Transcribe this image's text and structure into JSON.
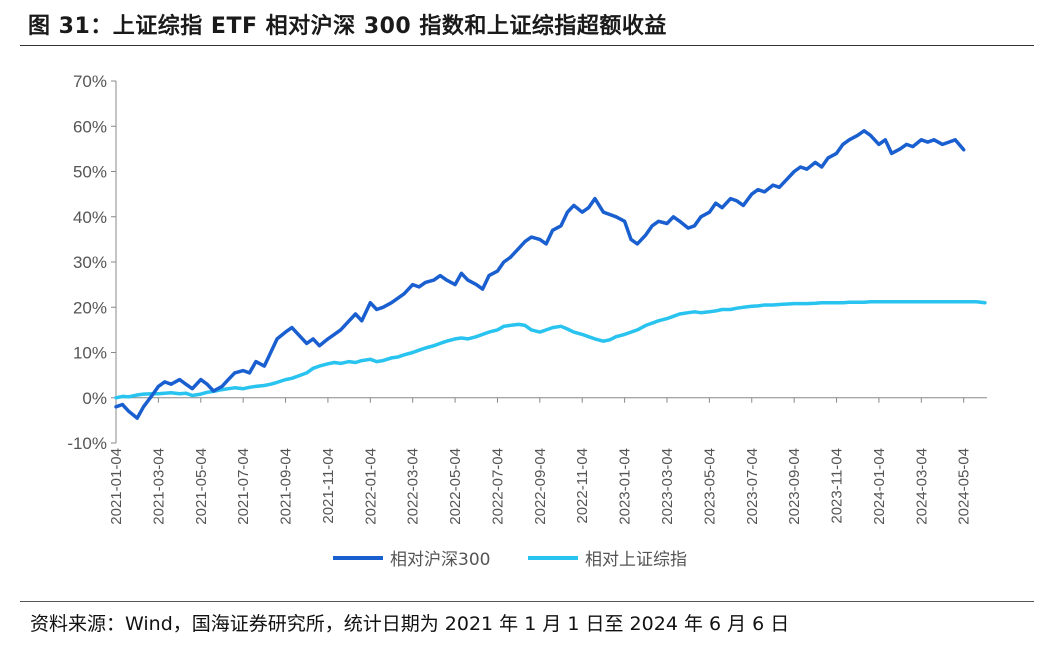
{
  "title": "图 31：上证综指 ETF 相对沪深 300 指数和上证综指超额收益",
  "source": "资料来源：Wind，国海证券研究所，统计日期为 2021 年 1 月 1 日至 2024 年 6 月 6 日",
  "colors": {
    "series1": "#1a5fd0",
    "series2": "#29c3f0",
    "axis": "#888888"
  },
  "chart_data": {
    "type": "line",
    "ylim": [
      -10,
      70
    ],
    "yticks": [
      "-10%",
      "0%",
      "10%",
      "20%",
      "30%",
      "40%",
      "50%",
      "60%",
      "70%"
    ],
    "xticks": [
      "2021-01-04",
      "2021-03-04",
      "2021-05-04",
      "2021-07-04",
      "2021-09-04",
      "2021-11-04",
      "2022-01-04",
      "2022-03-04",
      "2022-05-04",
      "2022-07-04",
      "2022-09-04",
      "2022-11-04",
      "2023-01-04",
      "2023-03-04",
      "2023-05-04",
      "2023-07-04",
      "2023-09-04",
      "2023-11-04",
      "2024-01-04",
      "2024-03-04",
      "2024-05-04"
    ],
    "legend_position": "bottom",
    "x_months": [
      0,
      0.3,
      0.6,
      1.0,
      1.3,
      1.7,
      2.0,
      2.3,
      2.6,
      3.0,
      3.3,
      3.6,
      4.0,
      4.3,
      4.6,
      5.0,
      5.3,
      5.6,
      6.0,
      6.3,
      6.6,
      7.0,
      7.3,
      7.6,
      8.0,
      8.3,
      8.6,
      9.0,
      9.3,
      9.6,
      10.0,
      10.3,
      10.6,
      11.0,
      11.3,
      11.6,
      12.0,
      12.3,
      12.6,
      13.0,
      13.3,
      13.6,
      14.0,
      14.3,
      14.6,
      15.0,
      15.3,
      15.6,
      16.0,
      16.3,
      16.6,
      17.0,
      17.3,
      17.6,
      18.0,
      18.3,
      18.6,
      19.0,
      19.3,
      19.6,
      20.0,
      20.3,
      20.6,
      21.0,
      21.3,
      21.6,
      22.0,
      22.3,
      22.6,
      23.0,
      23.3,
      23.6,
      24.0,
      24.3,
      24.6,
      25.0,
      25.3,
      25.6,
      26.0,
      26.3,
      26.6,
      27.0,
      27.3,
      27.6,
      28.0,
      28.3,
      28.6,
      29.0,
      29.3,
      29.6,
      30.0,
      30.3,
      30.6,
      31.0,
      31.3,
      31.6,
      32.0,
      32.3,
      32.6,
      33.0,
      33.3,
      33.6,
      34.0,
      34.3,
      34.6,
      35.0,
      35.3,
      35.6,
      36.0,
      36.3,
      36.6,
      37.0,
      37.3,
      37.6,
      38.0,
      38.3,
      38.6,
      39.0,
      39.3,
      39.6,
      40.0,
      40.3,
      40.6,
      41.0,
      41.1
    ],
    "series": [
      {
        "name": "相对沪深300",
        "values": [
          -2,
          -1.5,
          -3,
          -4.5,
          -2,
          0.5,
          2.5,
          3.5,
          3,
          4,
          3,
          2,
          4,
          3,
          1.5,
          2.5,
          4,
          5.5,
          6,
          5.5,
          8,
          7,
          10,
          13,
          14.5,
          15.5,
          14,
          12,
          13,
          11.5,
          13,
          14,
          15,
          17,
          18.5,
          17,
          21,
          19.5,
          20,
          21,
          22,
          23,
          25,
          24.5,
          25.5,
          26,
          27,
          26,
          25,
          27.5,
          26,
          25,
          24,
          27,
          28,
          30,
          31,
          33,
          34.5,
          35.5,
          35,
          34,
          37,
          38,
          41,
          42.5,
          41,
          42,
          44,
          41,
          40.5,
          40,
          39,
          35,
          34,
          36,
          38,
          39,
          38.5,
          40,
          39,
          37.5,
          38,
          40,
          41,
          43,
          42,
          44,
          43.5,
          42.5,
          45,
          46,
          45.5,
          47,
          46.5,
          48,
          50,
          51,
          50.5,
          52,
          51,
          53,
          54,
          56,
          57,
          58,
          59,
          58,
          56,
          57,
          54,
          55,
          56,
          55.5,
          57,
          56.5,
          57,
          56,
          56.5,
          57,
          54.8
        ]
      },
      {
        "name": "相对上证综指",
        "values": [
          0,
          0.3,
          0.2,
          0.6,
          0.8,
          0.9,
          0.9,
          1,
          1.1,
          0.9,
          1.0,
          0.5,
          0.8,
          1.2,
          1.4,
          1.8,
          2.0,
          2.2,
          2.0,
          2.3,
          2.5,
          2.7,
          3.0,
          3.4,
          4.0,
          4.3,
          4.8,
          5.5,
          6.5,
          7.0,
          7.5,
          7.8,
          7.6,
          8.0,
          7.8,
          8.2,
          8.5,
          8.0,
          8.2,
          8.8,
          9.0,
          9.5,
          10,
          10.5,
          11,
          11.5,
          12,
          12.5,
          13,
          13.2,
          13,
          13.5,
          14,
          14.5,
          15,
          15.8,
          16,
          16.2,
          16,
          15,
          14.5,
          15,
          15.5,
          15.8,
          15.2,
          14.5,
          14,
          13.5,
          13,
          12.5,
          12.8,
          13.5,
          14,
          14.5,
          15,
          16,
          16.5,
          17,
          17.5,
          18,
          18.5,
          18.8,
          19,
          18.8,
          19,
          19.2,
          19.5,
          19.5,
          19.8,
          20,
          20.2,
          20.3,
          20.5,
          20.5,
          20.6,
          20.7,
          20.8,
          20.8,
          20.8,
          20.9,
          21,
          21,
          21.0,
          21.0,
          21.1,
          21.1,
          21.1,
          21.2,
          21.2,
          21.2,
          21.2,
          21.2,
          21.2,
          21.2,
          21.2,
          21.2,
          21.2,
          21.2,
          21.2,
          21.2,
          21.2,
          21.2,
          21.2,
          21.0
        ]
      }
    ]
  }
}
